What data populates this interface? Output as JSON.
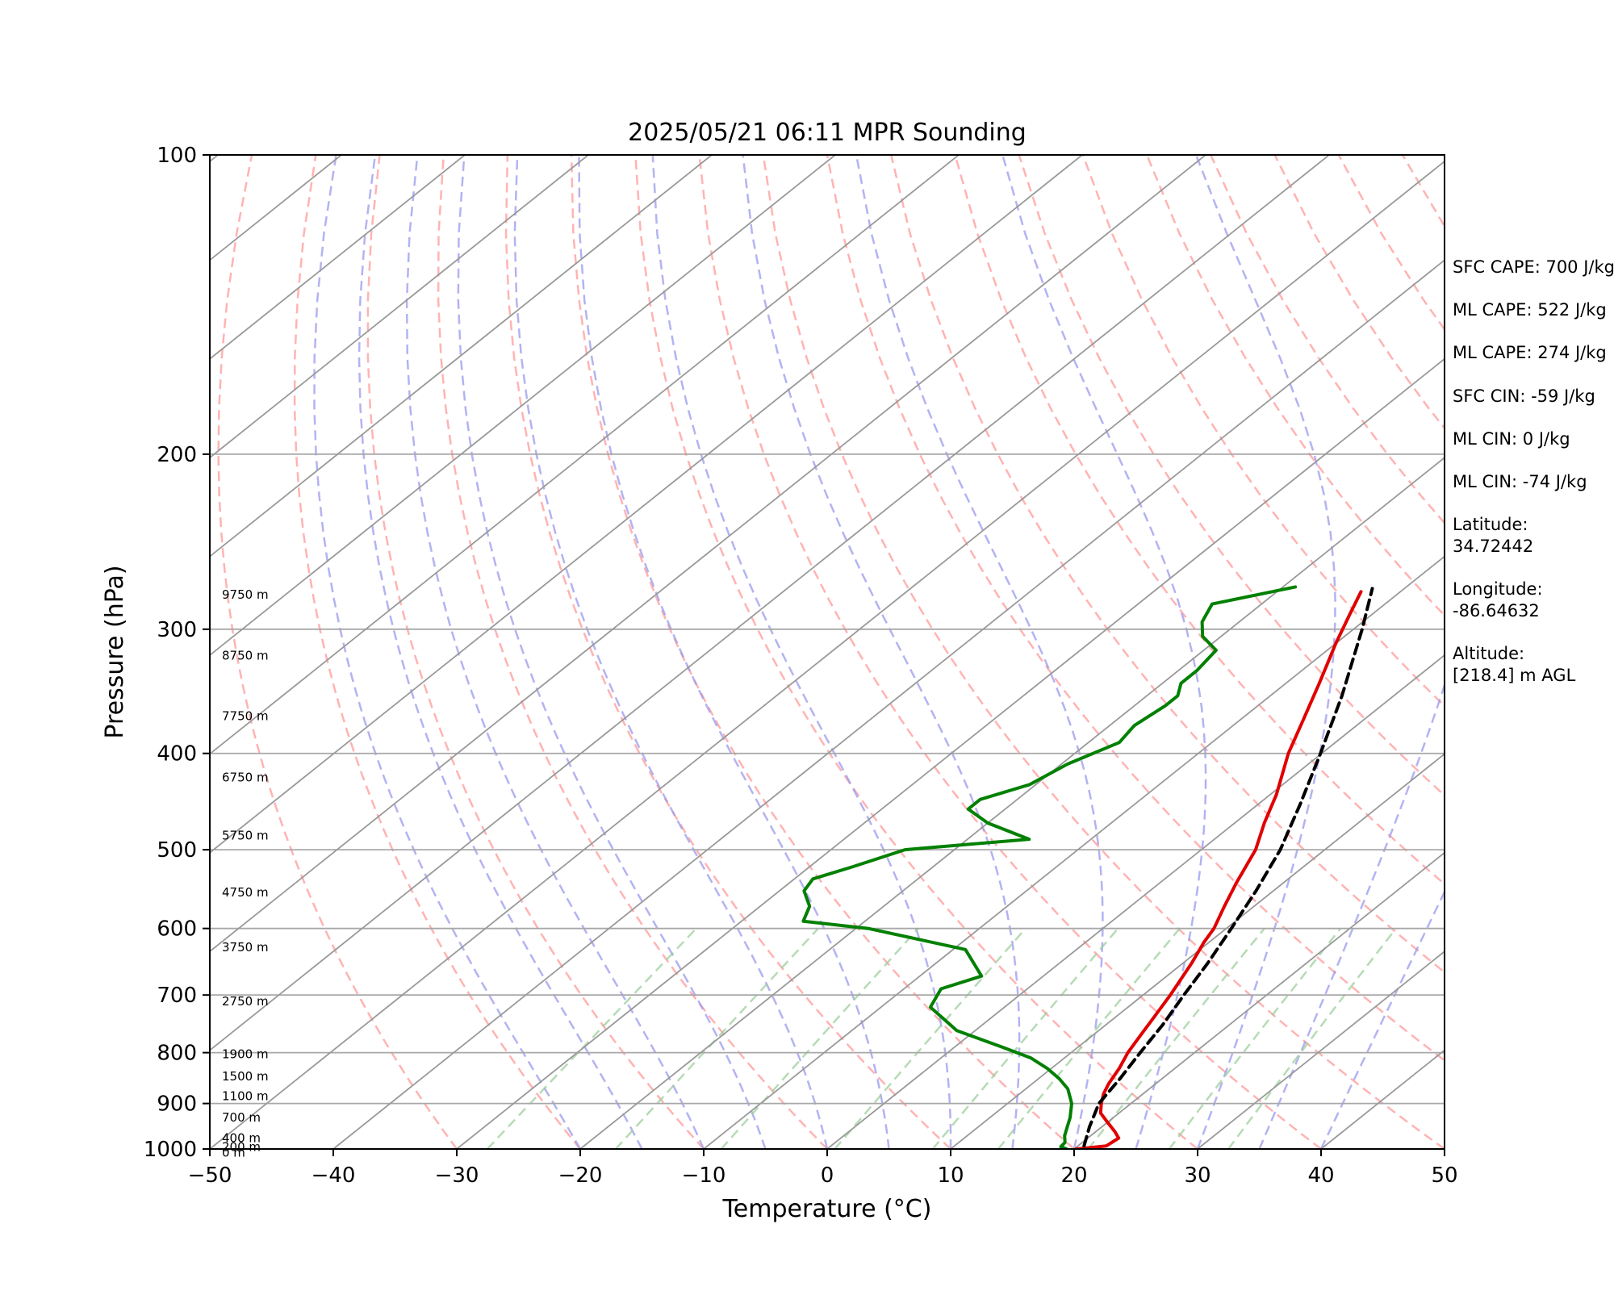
{
  "chart_data": {
    "type": "line",
    "title": "2025/05/21 06:11 MPR Sounding",
    "xlabel": "Temperature (°C)",
    "ylabel": "Pressure (hPa)",
    "xlim": [
      -50,
      50
    ],
    "ylim": [
      1000,
      100
    ],
    "y_scale": "log",
    "x_ticks": [
      "−50",
      "−40",
      "−30",
      "−20",
      "−10",
      "0",
      "10",
      "20",
      "30",
      "40",
      "50"
    ],
    "y_ticks": [
      "100",
      "200",
      "300",
      "400",
      "500",
      "600",
      "700",
      "800",
      "900",
      "1000"
    ],
    "grid": "pressure levels 200-900 hPa, skewed isotherms",
    "series": [
      {
        "color": "#e00000",
        "style": "solid",
        "points": [
          [
            1000,
            20.2
          ],
          [
            993,
            22.3
          ],
          [
            975,
            22.5
          ],
          [
            960,
            21.5
          ],
          [
            940,
            20.0
          ],
          [
            920,
            18.5
          ],
          [
            900,
            17.6
          ],
          [
            880,
            16.8
          ],
          [
            860,
            16.2
          ],
          [
            830,
            15.5
          ],
          [
            800,
            14.6
          ],
          [
            770,
            13.9
          ],
          [
            740,
            13.2
          ],
          [
            700,
            12.2
          ],
          [
            650,
            10.7
          ],
          [
            620,
            9.6
          ],
          [
            600,
            9.0
          ],
          [
            570,
            7.6
          ],
          [
            540,
            6.2
          ],
          [
            500,
            4.4
          ],
          [
            470,
            2.4
          ],
          [
            440,
            0.5
          ],
          [
            400,
            -2.7
          ],
          [
            370,
            -4.9
          ],
          [
            340,
            -7.3
          ],
          [
            310,
            -10.0
          ],
          [
            290,
            -11.8
          ],
          [
            275,
            -13.2
          ]
        ]
      },
      {
        "color": "#008000",
        "style": "solid",
        "points": [
          [
            1000,
            19.4
          ],
          [
            995,
            18.7
          ],
          [
            985,
            18.6
          ],
          [
            970,
            17.9
          ],
          [
            950,
            17.2
          ],
          [
            930,
            16.5
          ],
          [
            900,
            15.2
          ],
          [
            870,
            13.4
          ],
          [
            850,
            11.7
          ],
          [
            830,
            9.7
          ],
          [
            810,
            7.3
          ],
          [
            790,
            3.9
          ],
          [
            760,
            -1.5
          ],
          [
            720,
            -6.0
          ],
          [
            690,
            -7.0
          ],
          [
            670,
            -5.0
          ],
          [
            630,
            -9.0
          ],
          [
            600,
            -19.0
          ],
          [
            590,
            -25.0
          ],
          [
            570,
            -26.0
          ],
          [
            550,
            -28.0
          ],
          [
            535,
            -28.5
          ],
          [
            520,
            -26.5
          ],
          [
            500,
            -24.0
          ],
          [
            488,
            -15.0
          ],
          [
            470,
            -20.0
          ],
          [
            455,
            -23.0
          ],
          [
            445,
            -23.0
          ],
          [
            430,
            -20.5
          ],
          [
            410,
            -19.5
          ],
          [
            390,
            -17.5
          ],
          [
            375,
            -18.0
          ],
          [
            358,
            -17.5
          ],
          [
            350,
            -17.5
          ],
          [
            340,
            -18.5
          ],
          [
            330,
            -18.5
          ],
          [
            315,
            -19.0
          ],
          [
            305,
            -21.5
          ],
          [
            295,
            -23.0
          ],
          [
            283,
            -24.0
          ],
          [
            272,
            -19.0
          ]
        ]
      },
      {
        "color": "#000000",
        "style": "dashed",
        "points": [
          [
            993,
            20.5
          ],
          [
            950,
            19.0
          ],
          [
            900,
            17.4
          ],
          [
            850,
            16.6
          ],
          [
            800,
            15.6
          ],
          [
            750,
            14.6
          ],
          [
            700,
            13.3
          ],
          [
            650,
            12.0
          ],
          [
            600,
            10.4
          ],
          [
            550,
            8.6
          ],
          [
            500,
            6.4
          ],
          [
            450,
            3.4
          ],
          [
            400,
            -0.1
          ],
          [
            350,
            -4.2
          ],
          [
            300,
            -9.3
          ],
          [
            273,
            -12.6
          ]
        ]
      }
    ],
    "height_labels": [
      {
        "text": "0 m",
        "p": 1008
      },
      {
        "text": "200 m",
        "p": 995
      },
      {
        "text": "400 m",
        "p": 975
      },
      {
        "text": "700 m",
        "p": 930
      },
      {
        "text": "1100 m",
        "p": 885
      },
      {
        "text": "1500 m",
        "p": 845
      },
      {
        "text": "1900 m",
        "p": 803
      },
      {
        "text": "2750 m",
        "p": 710
      },
      {
        "text": "3750 m",
        "p": 627
      },
      {
        "text": "4750 m",
        "p": 552
      },
      {
        "text": "5750 m",
        "p": 484
      },
      {
        "text": "6750 m",
        "p": 423
      },
      {
        "text": "7750 m",
        "p": 367
      },
      {
        "text": "8750 m",
        "p": 319
      },
      {
        "text": "9750 m",
        "p": 277
      }
    ],
    "annotations": [
      "SFC CAPE: 700 J/kg",
      "ML CAPE: 522 J/kg",
      "ML CAPE: 274 J/kg",
      "SFC CIN: -59 J/kg",
      "ML CIN: 0 J/kg",
      "ML CIN: -74 J/kg",
      "Latitude:",
      "34.72442",
      "Longitude:",
      "-86.64632",
      "Altitude:",
      "[218.4] m AGL"
    ],
    "background_lines": {
      "dry_adiabats_color": "#ff9a9a",
      "moist_adiabats_color": "#9a9aee",
      "mixing_ratio_color": "#9ccf9c",
      "isotherm_color": "#999999"
    }
  }
}
